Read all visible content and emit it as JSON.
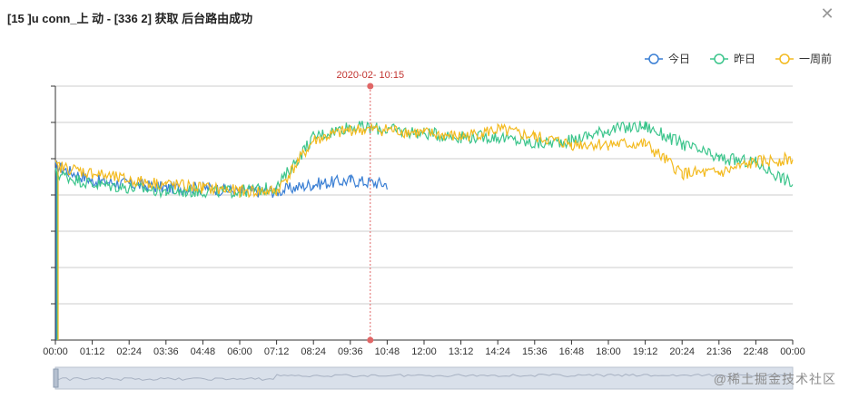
{
  "dialog": {
    "title": "[15  ]u  conn_上  动 - [336    2]   获取    后台路由成功",
    "close_icon": "close-icon"
  },
  "watermark": "@稀土掘金技术社区",
  "colors": {
    "today": "#3a7fd4",
    "yesterday": "#3cc58c",
    "week_ago": "#f3ba1f",
    "pointer": "#e06666",
    "pointer_label": "#c23531",
    "grid": "#cccccc",
    "axis": "#333333",
    "slider_bg": "#d9e0ea"
  },
  "chart_data": {
    "type": "line",
    "title": "",
    "xlabel": "",
    "ylabel": "",
    "ylim": [
      0,
      7
    ],
    "y_tick_labels_visible": false,
    "grid": true,
    "legend_position": "top-right",
    "x": [
      "00:00",
      "01:12",
      "02:24",
      "03:36",
      "04:48",
      "06:00",
      "07:12",
      "08:24",
      "09:36",
      "10:48",
      "12:00",
      "13:12",
      "14:24",
      "15:36",
      "16:48",
      "18:00",
      "19:12",
      "20:24",
      "21:36",
      "22:48",
      "00:00"
    ],
    "x_ticks": [
      "00:00",
      "01:12",
      "02:24",
      "03:36",
      "04:48",
      "06:00",
      "07:12",
      "08:24",
      "09:36",
      "10:48",
      "12:00",
      "13:12",
      "14:24",
      "15:36",
      "16:48",
      "18:00",
      "19:12",
      "20:24",
      "21:36",
      "22:48",
      "00:00"
    ],
    "series": [
      {
        "name": "今日",
        "color": "#3a7fd4",
        "values": [
          4.8,
          4.4,
          4.3,
          4.2,
          4.2,
          4.1,
          4.1,
          4.3,
          4.4,
          4.3,
          null,
          null,
          null,
          null,
          null,
          null,
          null,
          null,
          null,
          null,
          null
        ]
      },
      {
        "name": "昨日",
        "color": "#3cc58c",
        "values": [
          4.6,
          4.3,
          4.2,
          4.1,
          4.1,
          4.1,
          4.2,
          5.6,
          5.9,
          5.8,
          5.7,
          5.6,
          5.6,
          5.4,
          5.5,
          5.8,
          5.9,
          5.4,
          5.0,
          4.9,
          4.3
        ]
      },
      {
        "name": "一周前",
        "color": "#f3ba1f",
        "values": [
          4.8,
          4.6,
          4.4,
          4.3,
          4.2,
          4.1,
          4.1,
          5.5,
          5.8,
          5.8,
          5.7,
          5.6,
          5.8,
          5.6,
          5.4,
          5.4,
          5.4,
          4.6,
          4.6,
          4.9,
          5.0
        ]
      }
    ],
    "pointer": {
      "label": "2020-02-  10:15",
      "x": "10:15"
    }
  }
}
